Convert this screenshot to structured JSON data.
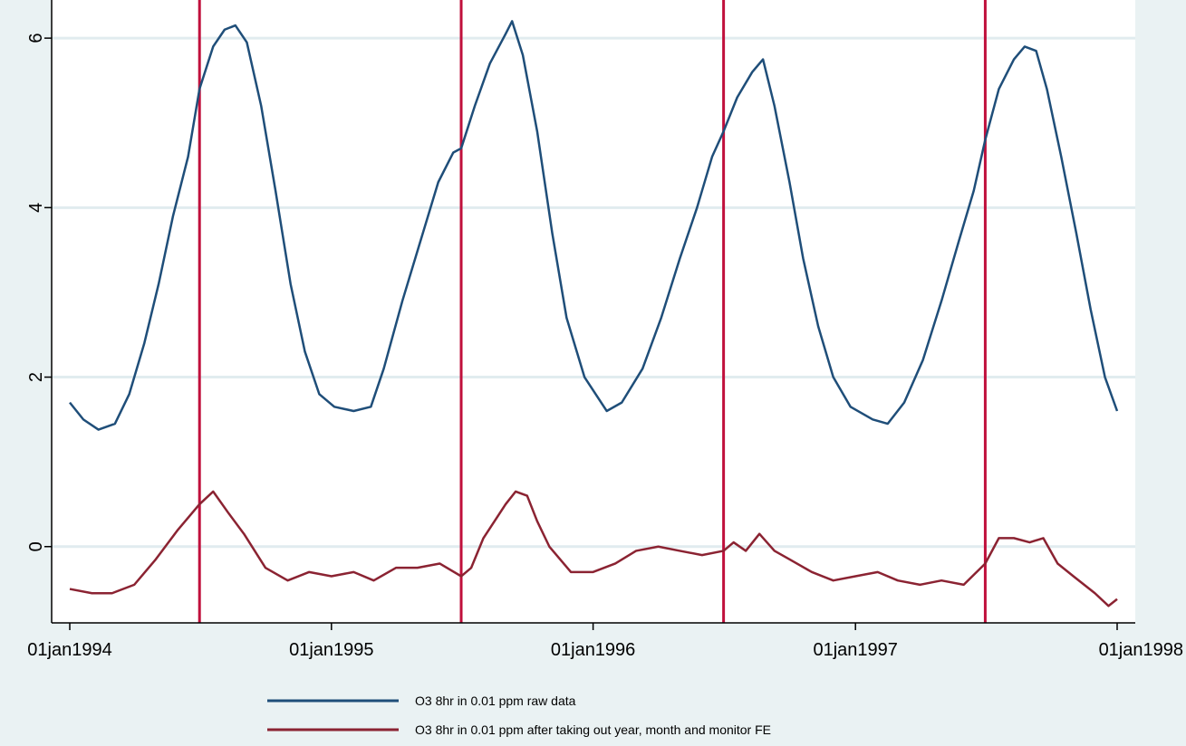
{
  "chart_data": {
    "type": "line",
    "title": "",
    "xlabel": "",
    "ylabel": "",
    "xlim": [
      "1994-01-01",
      "1998-01-01"
    ],
    "ylim": [
      -0.9,
      6.45
    ],
    "grid": true,
    "legend_position": "bottom",
    "x_ticks": [
      {
        "value": "1994-01-01",
        "label": "01jan1994"
      },
      {
        "value": "1995-01-01",
        "label": "01jan1995"
      },
      {
        "value": "1996-01-01",
        "label": "01jan1996"
      },
      {
        "value": "1997-01-01",
        "label": "01jan1997"
      },
      {
        "value": "1998-01-01",
        "label": "01jan1998"
      }
    ],
    "y_ticks": [
      {
        "value": 0,
        "label": "0"
      },
      {
        "value": 2,
        "label": "2"
      },
      {
        "value": 4,
        "label": "4"
      },
      {
        "value": 6,
        "label": "6"
      }
    ],
    "reference_lines": {
      "color": "#c0103c",
      "x": [
        "1994-07-01",
        "1995-07-01",
        "1996-07-01",
        "1997-07-01"
      ]
    },
    "series": [
      {
        "name": "O3 8hr in 0.01 ppm raw data",
        "color": "#1f4e79",
        "points": [
          [
            "1994-01-01",
            1.7
          ],
          [
            "1994-01-20",
            1.5
          ],
          [
            "1994-02-10",
            1.38
          ],
          [
            "1994-03-05",
            1.45
          ],
          [
            "1994-03-25",
            1.8
          ],
          [
            "1994-04-15",
            2.4
          ],
          [
            "1994-05-05",
            3.1
          ],
          [
            "1994-05-25",
            3.9
          ],
          [
            "1994-06-15",
            4.6
          ],
          [
            "1994-07-01",
            5.4
          ],
          [
            "1994-07-20",
            5.9
          ],
          [
            "1994-08-05",
            6.1
          ],
          [
            "1994-08-20",
            6.15
          ],
          [
            "1994-09-05",
            5.95
          ],
          [
            "1994-09-25",
            5.2
          ],
          [
            "1994-10-15",
            4.2
          ],
          [
            "1994-11-05",
            3.1
          ],
          [
            "1994-11-25",
            2.3
          ],
          [
            "1994-12-15",
            1.8
          ],
          [
            "1995-01-05",
            1.65
          ],
          [
            "1995-02-01",
            1.6
          ],
          [
            "1995-02-25",
            1.65
          ],
          [
            "1995-03-15",
            2.1
          ],
          [
            "1995-04-10",
            2.9
          ],
          [
            "1995-05-05",
            3.6
          ],
          [
            "1995-05-30",
            4.3
          ],
          [
            "1995-06-20",
            4.65
          ],
          [
            "1995-07-01",
            4.7
          ],
          [
            "1995-07-20",
            5.2
          ],
          [
            "1995-08-10",
            5.7
          ],
          [
            "1995-09-01",
            6.05
          ],
          [
            "1995-09-10",
            6.2
          ],
          [
            "1995-09-25",
            5.8
          ],
          [
            "1995-10-15",
            4.9
          ],
          [
            "1995-11-05",
            3.7
          ],
          [
            "1995-11-25",
            2.7
          ],
          [
            "1995-12-20",
            2.0
          ],
          [
            "1996-01-20",
            1.6
          ],
          [
            "1996-02-10",
            1.7
          ],
          [
            "1996-03-10",
            2.1
          ],
          [
            "1996-04-05",
            2.7
          ],
          [
            "1996-05-01",
            3.4
          ],
          [
            "1996-05-25",
            4.0
          ],
          [
            "1996-06-15",
            4.6
          ],
          [
            "1996-07-01",
            4.9
          ],
          [
            "1996-07-20",
            5.3
          ],
          [
            "1996-08-10",
            5.6
          ],
          [
            "1996-08-25",
            5.75
          ],
          [
            "1996-09-10",
            5.2
          ],
          [
            "1996-10-01",
            4.3
          ],
          [
            "1996-10-20",
            3.4
          ],
          [
            "1996-11-10",
            2.6
          ],
          [
            "1996-12-01",
            2.0
          ],
          [
            "1996-12-25",
            1.65
          ],
          [
            "1997-01-25",
            1.5
          ],
          [
            "1997-02-15",
            1.45
          ],
          [
            "1997-03-10",
            1.7
          ],
          [
            "1997-04-05",
            2.2
          ],
          [
            "1997-05-01",
            2.9
          ],
          [
            "1997-05-25",
            3.6
          ],
          [
            "1997-06-15",
            4.2
          ],
          [
            "1997-07-01",
            4.8
          ],
          [
            "1997-07-20",
            5.4
          ],
          [
            "1997-08-10",
            5.75
          ],
          [
            "1997-08-25",
            5.9
          ],
          [
            "1997-09-10",
            5.85
          ],
          [
            "1997-09-25",
            5.4
          ],
          [
            "1997-10-15",
            4.6
          ],
          [
            "1997-11-05",
            3.7
          ],
          [
            "1997-11-25",
            2.8
          ],
          [
            "1997-12-15",
            2.0
          ],
          [
            "1998-01-01",
            1.6
          ]
        ]
      },
      {
        "name": "O3 8hr in 0.01 ppm after taking out year, month and monitor FE",
        "color": "#8b2332",
        "points": [
          [
            "1994-01-01",
            -0.5
          ],
          [
            "1994-02-01",
            -0.55
          ],
          [
            "1994-03-01",
            -0.55
          ],
          [
            "1994-04-01",
            -0.45
          ],
          [
            "1994-05-01",
            -0.15
          ],
          [
            "1994-06-01",
            0.2
          ],
          [
            "1994-07-01",
            0.5
          ],
          [
            "1994-07-20",
            0.65
          ],
          [
            "1994-08-10",
            0.4
          ],
          [
            "1994-09-01",
            0.15
          ],
          [
            "1994-10-01",
            -0.25
          ],
          [
            "1994-11-01",
            -0.4
          ],
          [
            "1994-12-01",
            -0.3
          ],
          [
            "1995-01-01",
            -0.35
          ],
          [
            "1995-02-01",
            -0.3
          ],
          [
            "1995-03-01",
            -0.4
          ],
          [
            "1995-04-01",
            -0.25
          ],
          [
            "1995-05-01",
            -0.25
          ],
          [
            "1995-06-01",
            -0.2
          ],
          [
            "1995-07-01",
            -0.35
          ],
          [
            "1995-07-15",
            -0.25
          ],
          [
            "1995-08-01",
            0.1
          ],
          [
            "1995-09-01",
            0.5
          ],
          [
            "1995-09-15",
            0.65
          ],
          [
            "1995-10-01",
            0.6
          ],
          [
            "1995-10-15",
            0.3
          ],
          [
            "1995-11-01",
            0.0
          ],
          [
            "1995-12-01",
            -0.3
          ],
          [
            "1996-01-01",
            -0.3
          ],
          [
            "1996-02-01",
            -0.2
          ],
          [
            "1996-03-01",
            -0.05
          ],
          [
            "1996-04-01",
            0.0
          ],
          [
            "1996-05-01",
            -0.05
          ],
          [
            "1996-06-01",
            -0.1
          ],
          [
            "1996-07-01",
            -0.05
          ],
          [
            "1996-07-15",
            0.05
          ],
          [
            "1996-08-01",
            -0.05
          ],
          [
            "1996-08-20",
            0.15
          ],
          [
            "1996-09-10",
            -0.05
          ],
          [
            "1996-10-01",
            -0.15
          ],
          [
            "1996-11-01",
            -0.3
          ],
          [
            "1996-12-01",
            -0.4
          ],
          [
            "1997-01-01",
            -0.35
          ],
          [
            "1997-02-01",
            -0.3
          ],
          [
            "1997-03-01",
            -0.4
          ],
          [
            "1997-04-01",
            -0.45
          ],
          [
            "1997-05-01",
            -0.4
          ],
          [
            "1997-06-01",
            -0.45
          ],
          [
            "1997-07-01",
            -0.2
          ],
          [
            "1997-07-20",
            0.1
          ],
          [
            "1997-08-10",
            0.1
          ],
          [
            "1997-09-01",
            0.05
          ],
          [
            "1997-09-20",
            0.1
          ],
          [
            "1997-10-10",
            -0.2
          ],
          [
            "1997-11-01",
            -0.35
          ],
          [
            "1997-12-01",
            -0.55
          ],
          [
            "1997-12-20",
            -0.7
          ],
          [
            "1998-01-01",
            -0.62
          ]
        ]
      }
    ]
  },
  "colors": {
    "page_background": "#eaf2f3",
    "plot_background": "#ffffff",
    "gridline": "#e1ecef"
  }
}
